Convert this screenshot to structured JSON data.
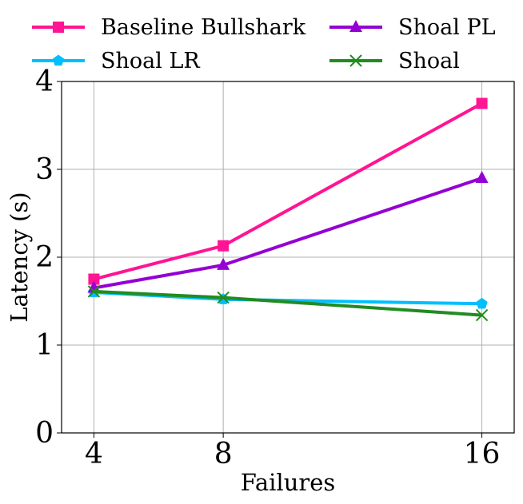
{
  "chart_data": {
    "type": "line",
    "xlabel": "Failures",
    "ylabel": "Latency (s)",
    "x": [
      4,
      8,
      16
    ],
    "x_tick_labels": [
      "4",
      "8",
      "16"
    ],
    "xlim": [
      3,
      17
    ],
    "ylim": [
      0,
      4
    ],
    "y_ticks": [
      0,
      1,
      2,
      3,
      4
    ],
    "y_tick_labels": [
      "0",
      "1",
      "2",
      "3",
      "4"
    ],
    "grid": true,
    "legend_placement": "top, two columns",
    "series": [
      {
        "name": "Baseline Bullshark",
        "color": "#ff1493",
        "marker": "square",
        "values": [
          1.75,
          2.13,
          3.75
        ]
      },
      {
        "name": "Shoal LR",
        "color": "#00bfff",
        "marker": "pentagon",
        "values": [
          1.6,
          1.52,
          1.47
        ]
      },
      {
        "name": "Shoal PL",
        "color": "#9400d3",
        "marker": "triangle",
        "values": [
          1.65,
          1.91,
          2.9
        ]
      },
      {
        "name": "Shoal",
        "color": "#228b22",
        "marker": "x",
        "values": [
          1.61,
          1.54,
          1.34
        ]
      }
    ]
  }
}
